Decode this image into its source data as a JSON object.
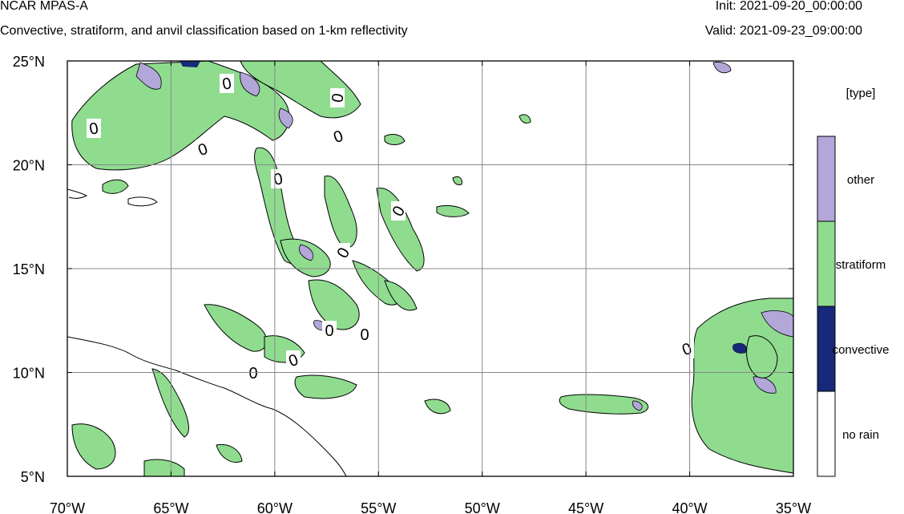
{
  "header": {
    "title": "NCAR MPAS-A",
    "subtitle": "Convective, stratiform, and anvil classification based on 1-km reflectivity",
    "init": "Init: 2021-09-20_00:00:00",
    "valid": "Valid: 2021-09-23_09:00:00"
  },
  "map": {
    "extent": {
      "lon": [
        -70,
        -35
      ],
      "lat": [
        5,
        25
      ]
    },
    "lon_ticks": [
      "70°W",
      "65°W",
      "60°W",
      "55°W",
      "50°W",
      "45°W",
      "40°W",
      "35°W"
    ],
    "lat_ticks": [
      "25°N",
      "20°N",
      "15°N",
      "10°N",
      "5°N"
    ],
    "contour_label": "0",
    "grid": true
  },
  "legend": {
    "title": "[type]",
    "items": [
      {
        "label": "other",
        "color": "#b3a6d9"
      },
      {
        "label": "stratiform",
        "color": "#8fdc8f"
      },
      {
        "label": "convective",
        "color": "#18287a"
      },
      {
        "label": "no rain",
        "color": "#ffffff"
      }
    ]
  }
}
